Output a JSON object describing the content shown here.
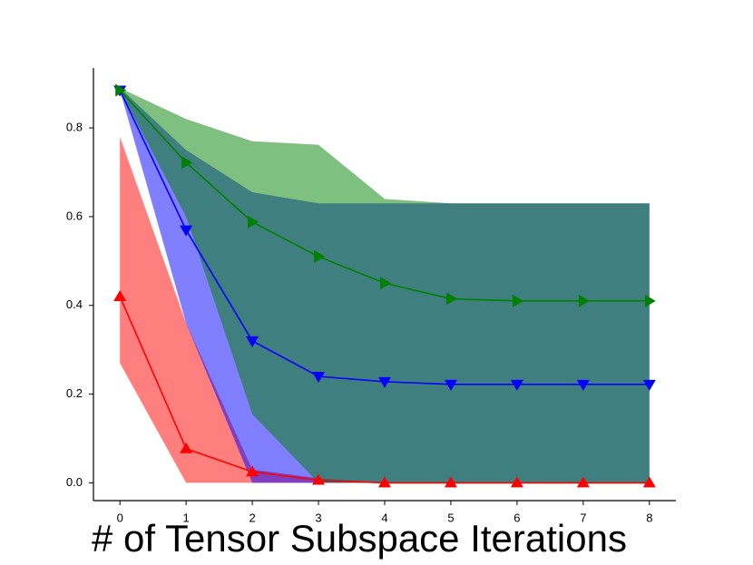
{
  "chart_data": {
    "type": "line",
    "xlabel": "# of Tensor Subspace Iterations",
    "x": [
      0,
      1,
      2,
      3,
      4,
      5,
      6,
      7,
      8
    ],
    "xlim": [
      -0.4,
      8.4
    ],
    "xticks": [
      0,
      1,
      2,
      3,
      4,
      5,
      6,
      7,
      8
    ],
    "ylim": [
      -0.04,
      0.935
    ],
    "yticks": [
      {
        "value": 0,
        "label": "0.0"
      },
      0.2,
      0.4,
      0.6,
      0.8
    ],
    "band_opacity": 0.5,
    "series": [
      {
        "color": "#ff0000",
        "marker": "triangle-up",
        "values": [
          0.42,
          0.077,
          0.025,
          0.006,
          0,
          0,
          0,
          0,
          0
        ],
        "upper": [
          0.78,
          0.36,
          0.03,
          0.01,
          0,
          0,
          0,
          0,
          0
        ],
        "lower": [
          0.27,
          0,
          0,
          0,
          0,
          0,
          0,
          0,
          0
        ]
      },
      {
        "color": "#0000ff",
        "marker": "triangle-down",
        "values": [
          0.885,
          0.57,
          0.32,
          0.24,
          0.228,
          0.222,
          0.222,
          0.222,
          0.222
        ],
        "upper": [
          0.89,
          0.75,
          0.655,
          0.63,
          0.63,
          0.63,
          0.63,
          0.63,
          0.63
        ],
        "lower": [
          0.885,
          0.36,
          0,
          0,
          0,
          0,
          0,
          0,
          0
        ]
      },
      {
        "color": "#008000",
        "marker": "triangle-right",
        "values": [
          0.885,
          0.722,
          0.588,
          0.51,
          0.45,
          0.415,
          0.41,
          0.41,
          0.41
        ],
        "upper": [
          0.89,
          0.82,
          0.77,
          0.762,
          0.64,
          0.63,
          0.63,
          0.63,
          0.63
        ],
        "lower": [
          0.885,
          0.6,
          0.155,
          0,
          0,
          0,
          0,
          0,
          0
        ]
      }
    ]
  }
}
